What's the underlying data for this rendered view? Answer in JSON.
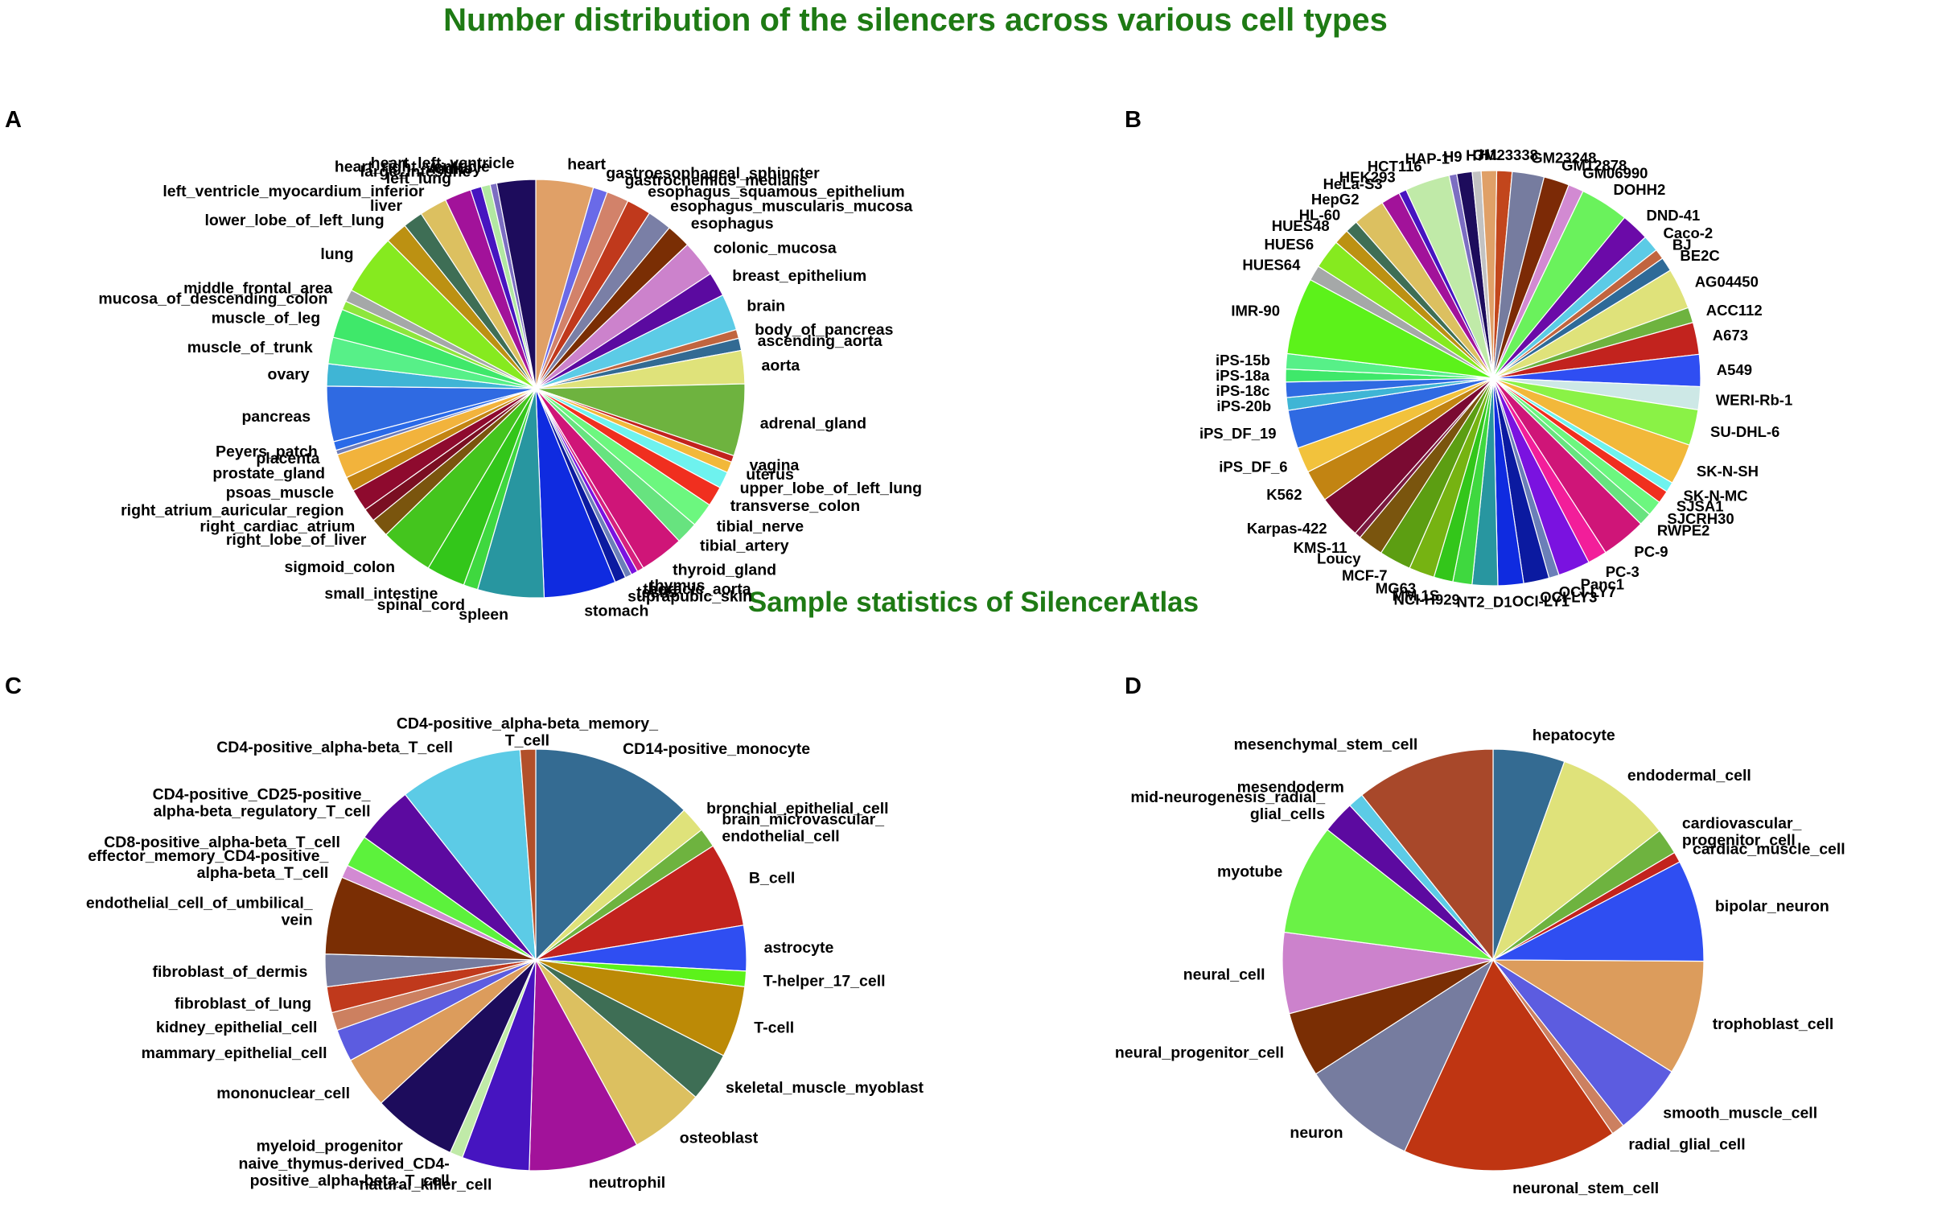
{
  "figure": {
    "title": "Number distribution of the silencers across various cell types",
    "subtitle": "Sample statistics of SilencerAtlas",
    "title_color": "#1e7a14"
  },
  "chart_data": [
    {
      "type": "pie",
      "panel": "A",
      "title": "",
      "slices": [
        {
          "label": "heart",
          "value": 5.2,
          "color": "#e0a067"
        },
        {
          "label": "gastroesophageal_sphincter",
          "value": 1.3,
          "color": "#6a6ae8"
        },
        {
          "label": "gastrocnemius_medialis",
          "value": 2.0,
          "color": "#d2826a"
        },
        {
          "label": "esophagus_squamous_epithelium",
          "value": 2.2,
          "color": "#c0391c"
        },
        {
          "label": "esophagus_muscularis_mucosa",
          "value": 2.2,
          "color": "#7a7fa6"
        },
        {
          "label": "esophagus",
          "value": 2.2,
          "color": "#7a2e04"
        },
        {
          "label": "colonic_mucosa",
          "value": 3.3,
          "color": "#cc82cc"
        },
        {
          "label": "breast_epithelium",
          "value": 2.2,
          "color": "#5b0aa0"
        },
        {
          "label": "brain",
          "value": 3.3,
          "color": "#5ccbe6"
        },
        {
          "label": "body_of_pancreas",
          "value": 0.8,
          "color": "#c1653f"
        },
        {
          "label": "ascending_aorta",
          "value": 1.1,
          "color": "#326a93"
        },
        {
          "label": "aorta",
          "value": 3.0,
          "color": "#dfe27a"
        },
        {
          "label": "adrenal_gland",
          "value": 6.5,
          "color": "#6eb33f"
        },
        {
          "label": "vagina",
          "value": 0.6,
          "color": "#c2231e"
        },
        {
          "label": "uterus",
          "value": 1.0,
          "color": "#f2b83a"
        },
        {
          "label": "upper_lobe_of_left_lung",
          "value": 1.5,
          "color": "#6ef2ee"
        },
        {
          "label": "transverse_colon",
          "value": 1.8,
          "color": "#f02f1f"
        },
        {
          "label": "tibial_nerve",
          "value": 2.2,
          "color": "#6cf77f"
        },
        {
          "label": "tibial_artery",
          "value": 2.0,
          "color": "#67e37f"
        },
        {
          "label": "thyroid_gland",
          "value": 4.0,
          "color": "#cf1578"
        },
        {
          "label": "thymus",
          "value": 0.6,
          "color": "#d6207e"
        },
        {
          "label": "thoracic_aorta",
          "value": 0.6,
          "color": "#7a12e0"
        },
        {
          "label": "testis",
          "value": 0.6,
          "color": "#6b7fb8"
        },
        {
          "label": "suprapubic_skin",
          "value": 1.0,
          "color": "#0b1aa0"
        },
        {
          "label": "stomach",
          "value": 6.5,
          "color": "#0f2be0"
        },
        {
          "label": "spleen",
          "value": 6.0,
          "color": "#2896a0"
        },
        {
          "label": "spinal_cord",
          "value": 1.3,
          "color": "#3fd83f"
        },
        {
          "label": "small_intestine",
          "value": 3.5,
          "color": "#33c61a"
        },
        {
          "label": "sigmoid_colon",
          "value": 4.8,
          "color": "#44c51e"
        },
        {
          "label": "right_lobe_of_liver",
          "value": 1.7,
          "color": "#7a550e"
        },
        {
          "label": "right_cardiac_atrium",
          "value": 1.2,
          "color": "#7a0f22"
        },
        {
          "label": "right_atrium_auricular_region",
          "value": 2.0,
          "color": "#8e0a2e"
        },
        {
          "label": "psoas_muscle",
          "value": 1.3,
          "color": "#c28412"
        },
        {
          "label": "prostate_gland",
          "value": 2.2,
          "color": "#f2b33c"
        },
        {
          "label": "placenta",
          "value": 0.4,
          "color": "#6e7db9"
        },
        {
          "label": "Peyers_patch",
          "value": 0.8,
          "color": "#2a6ae8"
        },
        {
          "label": "pancreas",
          "value": 5.0,
          "color": "#2f6ae2"
        },
        {
          "label": "ovary",
          "value": 2.0,
          "color": "#3fb5d5"
        },
        {
          "label": "muscle_of_trunk",
          "value": 2.4,
          "color": "#57f088"
        },
        {
          "label": "muscle_of_leg",
          "value": 2.6,
          "color": "#3fe86a"
        },
        {
          "label": "mucosa_of_descending_colon",
          "value": 0.8,
          "color": "#8de63c"
        },
        {
          "label": "middle_frontal_area",
          "value": 1.1,
          "color": "#a5a8a8"
        },
        {
          "label": "lung",
          "value": 5.5,
          "color": "#86ea1f"
        },
        {
          "label": "lower_lobe_of_left_lung",
          "value": 2.0,
          "color": "#bc9112"
        },
        {
          "label": "liver",
          "value": 1.8,
          "color": "#3e6e55"
        },
        {
          "label": "left_ventricle_myocardium_inferior",
          "value": 2.5,
          "color": "#dcc060"
        },
        {
          "label": "left_lung",
          "value": 2.4,
          "color": "#a2129a"
        },
        {
          "label": "large_intestine",
          "value": 1.0,
          "color": "#4614c0"
        },
        {
          "label": "kidney",
          "value": 0.8,
          "color": "#b2e8a2"
        },
        {
          "label": "heart_right_ventricle",
          "value": 0.6,
          "color": "#7c6ec2"
        },
        {
          "label": "heart_left_ventricle",
          "value": 3.5,
          "color": "#1d0c5c"
        }
      ]
    },
    {
      "type": "pie",
      "panel": "B",
      "title": "",
      "slices": [
        {
          "label": "GM23338",
          "value": 1.2,
          "color": "#c2461c"
        },
        {
          "label": "GM23248",
          "value": 2.5,
          "color": "#767c9f"
        },
        {
          "label": "GM12878",
          "value": 2.0,
          "color": "#7c2a06"
        },
        {
          "label": "GM06990",
          "value": 1.2,
          "color": "#d28ad2"
        },
        {
          "label": "DOHH2",
          "value": 3.8,
          "color": "#6af25c"
        },
        {
          "label": "DND-41",
          "value": 2.2,
          "color": "#6b0aa8"
        },
        {
          "label": "Caco-2",
          "value": 1.3,
          "color": "#5ccbe6"
        },
        {
          "label": "BJ",
          "value": 0.8,
          "color": "#c1653f"
        },
        {
          "label": "BE2C",
          "value": 1.1,
          "color": "#2e6a98"
        },
        {
          "label": "AG04450",
          "value": 3.2,
          "color": "#dfe27a"
        },
        {
          "label": "ACC112",
          "value": 1.2,
          "color": "#6eb33f"
        },
        {
          "label": "A673",
          "value": 2.5,
          "color": "#c2231e"
        },
        {
          "label": "A549",
          "value": 2.5,
          "color": "#2f4ef2"
        },
        {
          "label": "WERI-Rb-1",
          "value": 1.8,
          "color": "#cde8e6"
        },
        {
          "label": "SU-DHL-6",
          "value": 2.8,
          "color": "#8af246"
        },
        {
          "label": "SK-N-SH",
          "value": 3.2,
          "color": "#f2b83a"
        },
        {
          "label": "SK-N-MC",
          "value": 0.8,
          "color": "#6ef2ee"
        },
        {
          "label": "SJSA1",
          "value": 1.0,
          "color": "#f02f1f"
        },
        {
          "label": "SJCRH30",
          "value": 1.2,
          "color": "#6cf77f"
        },
        {
          "label": "RWPE2",
          "value": 1.0,
          "color": "#67e37f"
        },
        {
          "label": "PC-9",
          "value": 3.5,
          "color": "#cf1578"
        },
        {
          "label": "PC-3",
          "value": 1.5,
          "color": "#f21e9a"
        },
        {
          "label": "Panc1",
          "value": 2.5,
          "color": "#7a12e0"
        },
        {
          "label": "OCI-LY7",
          "value": 0.8,
          "color": "#6b7fb8"
        },
        {
          "label": "OCI-LY3",
          "value": 2.0,
          "color": "#0b1aa0"
        },
        {
          "label": "OCI-LY1",
          "value": 2.0,
          "color": "#0f2be0"
        },
        {
          "label": "NT2_D1",
          "value": 2.0,
          "color": "#2896a0"
        },
        {
          "label": "NCI-H929",
          "value": 1.5,
          "color": "#3fd83f"
        },
        {
          "label": "MM.1S",
          "value": 1.5,
          "color": "#33c61a"
        },
        {
          "label": "MG63",
          "value": 2.0,
          "color": "#76b312"
        },
        {
          "label": "MCF-7",
          "value": 2.5,
          "color": "#5c9e12"
        },
        {
          "label": "Loucy",
          "value": 2.0,
          "color": "#7a550e"
        },
        {
          "label": "KMS-11",
          "value": 0.5,
          "color": "#7a1a40"
        },
        {
          "label": "Karpas-422",
          "value": 3.5,
          "color": "#7a0a32"
        },
        {
          "label": "K562",
          "value": 2.5,
          "color": "#c28412"
        },
        {
          "label": "iPS_DF_6",
          "value": 2.0,
          "color": "#f2c23c"
        },
        {
          "label": "iPS_DF_19",
          "value": 3.0,
          "color": "#2f6ae2"
        },
        {
          "label": "iPS-20b",
          "value": 1.0,
          "color": "#3fb5d5"
        },
        {
          "label": "iPS-18c",
          "value": 1.2,
          "color": "#2f6ae2"
        },
        {
          "label": "iPS-18a",
          "value": 1.0,
          "color": "#3fe86a"
        },
        {
          "label": "iPS-15b",
          "value": 1.2,
          "color": "#57f088"
        },
        {
          "label": "IMR-90",
          "value": 6.0,
          "color": "#5cf21a"
        },
        {
          "label": "HUES64",
          "value": 1.2,
          "color": "#a5a8a8"
        },
        {
          "label": "HUES6",
          "value": 2.3,
          "color": "#86ea1f"
        },
        {
          "label": "HUES48",
          "value": 1.2,
          "color": "#bc9112"
        },
        {
          "label": "HL-60",
          "value": 1.0,
          "color": "#3e6e55"
        },
        {
          "label": "HepG2",
          "value": 2.5,
          "color": "#dcc060"
        },
        {
          "label": "HeLa-S3",
          "value": 1.5,
          "color": "#a2129a"
        },
        {
          "label": "HEK293",
          "value": 0.6,
          "color": "#4614c0"
        },
        {
          "label": "HCT116",
          "value": 3.5,
          "color": "#c0eaa8"
        },
        {
          "label": "HAP-1",
          "value": 0.6,
          "color": "#7c6ec2"
        },
        {
          "label": "H9",
          "value": 1.2,
          "color": "#1d0c5c"
        },
        {
          "label": "H7",
          "value": 0.7,
          "color": "#c2c2c2"
        },
        {
          "label": "H1",
          "value": 1.2,
          "color": "#e0a067"
        }
      ]
    },
    {
      "type": "pie",
      "panel": "C",
      "title": "",
      "slices": [
        {
          "label": "CD14-positive_monocyte",
          "value": 12.5,
          "color": "#346b92"
        },
        {
          "label": "bronchial_epithelial_cell",
          "value": 2.0,
          "color": "#dfe27a"
        },
        {
          "label": "brain_microvascular_endothelial_cell",
          "value": 1.5,
          "color": "#6eb33f"
        },
        {
          "label": "B_cell",
          "value": 6.5,
          "color": "#c2231e"
        },
        {
          "label": "astrocyte",
          "value": 3.5,
          "color": "#2f4ef2"
        },
        {
          "label": "T-helper_17_cell",
          "value": 1.2,
          "color": "#5cf21a"
        },
        {
          "label": "T-cell",
          "value": 5.5,
          "color": "#bc8a06"
        },
        {
          "label": "skeletal_muscle_myoblast",
          "value": 3.8,
          "color": "#3e6e55"
        },
        {
          "label": "osteoblast",
          "value": 5.8,
          "color": "#dcc060"
        },
        {
          "label": "neutrophil",
          "value": 8.5,
          "color": "#a2129a"
        },
        {
          "label": "natural_killer_cell",
          "value": 5.2,
          "color": "#4614c0"
        },
        {
          "label": "naive_thymus-derived_CD4-positive_alpha-beta_T_cell",
          "value": 1.0,
          "color": "#c0eaa8"
        },
        {
          "label": "myeloid_progenitor",
          "value": 6.5,
          "color": "#1d0c5c"
        },
        {
          "label": "mononuclear_cell",
          "value": 4.0,
          "color": "#dc9c5c"
        },
        {
          "label": "mammary_epithelial_cell",
          "value": 2.5,
          "color": "#5c5ce0"
        },
        {
          "label": "kidney_epithelial_cell",
          "value": 1.4,
          "color": "#cc8060"
        },
        {
          "label": "fibroblast_of_lung",
          "value": 2.0,
          "color": "#c0391c"
        },
        {
          "label": "fibroblast_of_dermis",
          "value": 2.5,
          "color": "#767c9f"
        },
        {
          "label": "endothelial_cell_of_umbilical_vein",
          "value": 6.0,
          "color": "#7a2e04"
        },
        {
          "label": "effector_memory_CD4-positive_alpha-beta_T_cell",
          "value": 1.0,
          "color": "#d28ad2"
        },
        {
          "label": "CD8-positive_alpha-beta_T_cell",
          "value": 2.5,
          "color": "#5cf23c"
        },
        {
          "label": "CD4-positive_CD25-positive_alpha-beta_regulatory_T_cell",
          "value": 4.5,
          "color": "#5c0aa0"
        },
        {
          "label": "CD4-positive_alpha-beta_T_cell",
          "value": 9.5,
          "color": "#5ccbe6"
        },
        {
          "label": "CD4-positive_alpha-beta_memory_T_cell",
          "value": 1.2,
          "color": "#b2502a"
        }
      ]
    },
    {
      "type": "pie",
      "panel": "D",
      "title": "",
      "slices": [
        {
          "label": "hepatocyte",
          "value": 5.5,
          "color": "#346b92"
        },
        {
          "label": "endodermal_cell",
          "value": 9.0,
          "color": "#dfe27a"
        },
        {
          "label": "cardiovascular_progenitor_cell",
          "value": 2.0,
          "color": "#6eb33f"
        },
        {
          "label": "cardiac_muscle_cell",
          "value": 0.8,
          "color": "#c2231e"
        },
        {
          "label": "bipolar_neuron",
          "value": 7.8,
          "color": "#2f4ef2"
        },
        {
          "label": "trophoblast_cell",
          "value": 8.8,
          "color": "#dc9c5c"
        },
        {
          "label": "smooth_muscle_cell",
          "value": 5.5,
          "color": "#5c5ce0"
        },
        {
          "label": "radial_glial_cell",
          "value": 1.0,
          "color": "#cc8060"
        },
        {
          "label": "neuronal_stem_cell",
          "value": 16.5,
          "color": "#bf3512"
        },
        {
          "label": "neuron",
          "value": 9.0,
          "color": "#767c9f"
        },
        {
          "label": "neural_progenitor_cell",
          "value": 5.0,
          "color": "#7a2e04"
        },
        {
          "label": "neural_cell",
          "value": 6.2,
          "color": "#cc82cc"
        },
        {
          "label": "myotube",
          "value": 8.5,
          "color": "#6af246"
        },
        {
          "label": "mid-neurogenesis_radial_glial_cells",
          "value": 2.5,
          "color": "#5c0aa0"
        },
        {
          "label": "mesendoderm",
          "value": 1.2,
          "color": "#5ccbe6"
        },
        {
          "label": "mesenchymal_stem_cell",
          "value": 10.7,
          "color": "#a8482a"
        }
      ]
    }
  ]
}
